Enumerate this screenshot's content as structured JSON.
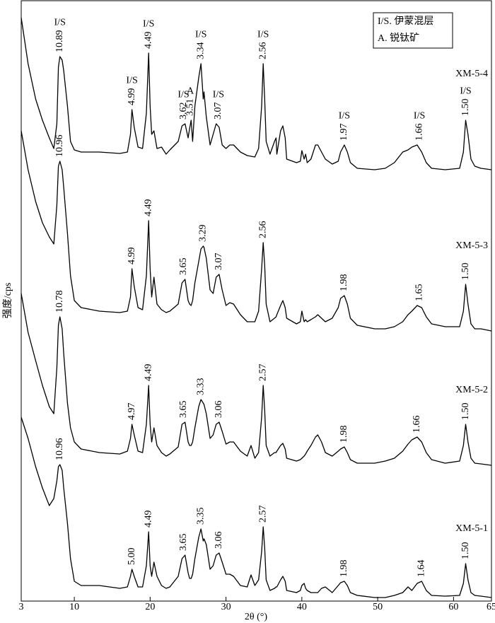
{
  "chart_data": {
    "type": "line",
    "xlabel": "2θ (°)",
    "ylabel": "强度/cps",
    "xlim": [
      3,
      65
    ],
    "xticks": [
      3,
      10,
      20,
      30,
      40,
      50,
      60,
      65
    ],
    "ylim": [
      0,
      150
    ],
    "grid": false,
    "color": "#000000",
    "legend": [
      "I/S. 伊蒙混层",
      "A. 锐钛矿"
    ],
    "x": [
      3.0,
      3.9,
      4.9,
      5.8,
      6.7,
      7.3,
      7.7,
      7.9,
      8.1,
      8.4,
      8.6,
      9.1,
      9.5,
      10.0,
      10.9,
      13.3,
      16.0,
      17.0,
      17.4,
      17.6,
      17.9,
      18.4,
      19.0,
      19.5,
      19.8,
      20.0,
      20.2,
      20.5,
      20.9,
      21.5,
      22.1,
      22.6,
      23.7,
      24.2,
      24.6,
      25.0,
      25.2,
      25.4,
      25.6,
      25.9,
      26.4,
      26.7,
      27.0,
      27.1,
      27.4,
      27.9,
      28.3,
      28.7,
      29.1,
      29.5,
      30.0,
      30.5,
      31.0,
      31.9,
      32.8,
      33.3,
      33.8,
      34.3,
      34.7,
      34.9,
      35.1,
      35.3,
      35.8,
      36.4,
      36.6,
      36.7,
      37.2,
      37.5,
      37.8,
      38.0,
      39.3,
      39.8,
      40.0,
      40.3,
      40.5,
      40.7,
      41.2,
      41.8,
      42.1,
      42.6,
      43.1,
      44.0,
      44.8,
      45.1,
      45.6,
      46.0,
      46.4,
      47.3,
      49.6,
      51.0,
      52.2,
      53.3,
      54.0,
      54.5,
      55.2,
      55.8,
      56.4,
      57.1,
      58.9,
      60.8,
      61.3,
      61.6,
      61.9,
      62.3,
      62.8,
      63.6,
      65.0
    ],
    "series": [
      {
        "name": "XM-5-4",
        "color": "#000000",
        "values": [
          107.5,
          75,
          50,
          35,
          22.5,
          15,
          32.5,
          72.5,
          80,
          77.5,
          70,
          45,
          20,
          14,
          12.5,
          12.5,
          11.5,
          12.5,
          25,
          42.5,
          30,
          16,
          15,
          40,
          82.5,
          45,
          25,
          27.5,
          15,
          16,
          11,
          14,
          20,
          31,
          32.5,
          22.5,
          29,
          35,
          20,
          45,
          65,
          75,
          50,
          55,
          37.5,
          17.5,
          25,
          32.5,
          30,
          17.5,
          15,
          17.5,
          17.5,
          12.5,
          10,
          9.5,
          9,
          15,
          45,
          75,
          50,
          20,
          11,
          20,
          22.5,
          11,
          27.5,
          31,
          22.5,
          7.5,
          5,
          6,
          13.5,
          7.5,
          11,
          5,
          7.5,
          17.5,
          17.5,
          12.5,
          7.5,
          4,
          6,
          12.5,
          17.5,
          12.5,
          5,
          1,
          0,
          1,
          5,
          12.5,
          14,
          16,
          17.5,
          12.5,
          5,
          1,
          0,
          1,
          12.5,
          35,
          25,
          7.5,
          2.5,
          1,
          0
        ],
        "peaks": [
          {
            "x": 8.1,
            "label": "10.89",
            "phase": "I/S"
          },
          {
            "x": 17.6,
            "label": "4.99",
            "phase": "I/S"
          },
          {
            "x": 19.8,
            "label": "4.49",
            "phase": "I/S"
          },
          {
            "x": 24.4,
            "label": "3.62",
            "phase": "I/S"
          },
          {
            "x": 25.3,
            "label": "3.51",
            "phase": "A"
          },
          {
            "x": 26.7,
            "label": "3.34",
            "phase": "I/S"
          },
          {
            "x": 29.0,
            "label": "3.07",
            "phase": "I/S"
          },
          {
            "x": 34.9,
            "label": "2.56",
            "phase": "I/S"
          },
          {
            "x": 45.6,
            "label": "1.97",
            "phase": "I/S"
          },
          {
            "x": 55.5,
            "label": "1.66",
            "phase": "I/S"
          },
          {
            "x": 61.6,
            "label": "1.50",
            "phase": "I/S"
          }
        ]
      },
      {
        "name": "XM-5-3",
        "color": "#000000",
        "values": [
          142.5,
          115,
          92.5,
          77.5,
          67.5,
          62.5,
          90,
          117.5,
          121,
          115,
          102.5,
          70,
          40,
          22.5,
          17.5,
          15,
          14,
          15,
          25,
          45,
          32.5,
          17.5,
          16,
          40,
          79,
          45,
          25,
          39,
          20,
          16,
          14,
          15,
          20,
          35,
          37.5,
          22.5,
          20,
          19,
          22.5,
          35,
          50,
          59,
          61,
          60,
          52.5,
          30,
          27.5,
          39,
          41,
          30,
          19,
          21,
          20,
          12.5,
          7.5,
          7.5,
          7.5,
          15,
          45,
          63.5,
          47.5,
          20,
          7.5,
          10,
          11,
          12.5,
          19,
          22.5,
          17.5,
          10,
          6,
          7.5,
          15,
          7.5,
          9,
          7.5,
          9,
          11,
          12.5,
          10,
          7.5,
          10,
          17.5,
          24,
          26,
          20,
          10,
          5,
          2.5,
          2.5,
          4,
          7.5,
          12.5,
          15,
          19,
          17.5,
          11,
          6,
          4,
          4,
          15,
          34,
          20,
          6,
          2.5,
          2.5,
          1
        ],
        "peaks": [
          {
            "x": 8.1,
            "label": "10.96"
          },
          {
            "x": 17.6,
            "label": "4.99"
          },
          {
            "x": 19.8,
            "label": "4.49"
          },
          {
            "x": 24.4,
            "label": "3.65"
          },
          {
            "x": 27.0,
            "label": "3.29"
          },
          {
            "x": 29.1,
            "label": "3.07"
          },
          {
            "x": 34.9,
            "label": "2.56"
          },
          {
            "x": 45.6,
            "label": "1.98"
          },
          {
            "x": 55.5,
            "label": "1.65"
          },
          {
            "x": 61.6,
            "label": "1.50"
          }
        ]
      },
      {
        "name": "XM-5-2",
        "color": "#000000",
        "values": [
          122.5,
          95,
          75,
          57.5,
          42.5,
          37.5,
          70,
          100,
          106,
          97.5,
          80,
          45,
          27.5,
          17.5,
          12.5,
          10,
          9,
          11,
          20,
          30,
          22.5,
          11,
          10,
          30,
          57.5,
          30,
          17.5,
          27.5,
          15,
          10,
          7.5,
          9,
          14,
          30,
          31.5,
          17.5,
          15,
          15,
          17.5,
          27.5,
          42.5,
          47.5,
          45,
          44,
          37.5,
          20,
          22.5,
          30,
          31.5,
          25,
          16,
          17.5,
          17.5,
          11,
          7.5,
          15,
          6,
          10,
          35,
          57.5,
          40,
          15,
          7.5,
          10,
          10,
          11,
          15,
          16.5,
          12.5,
          6,
          4,
          5,
          6,
          7.5,
          9,
          11,
          15,
          21,
          22.5,
          17.5,
          10,
          7.5,
          11,
          12.5,
          14,
          10,
          5,
          2.5,
          2.5,
          4,
          6,
          11,
          16,
          19,
          21,
          17.5,
          10,
          5,
          2.5,
          4,
          15,
          30,
          17.5,
          6,
          2.5,
          2,
          1
        ],
        "peaks": [
          {
            "x": 8.1,
            "label": "10.78"
          },
          {
            "x": 17.6,
            "label": "4.97"
          },
          {
            "x": 19.8,
            "label": "4.49"
          },
          {
            "x": 24.4,
            "label": "3.65"
          },
          {
            "x": 26.7,
            "label": "3.33"
          },
          {
            "x": 29.1,
            "label": "3.06"
          },
          {
            "x": 34.9,
            "label": "2.57"
          },
          {
            "x": 45.6,
            "label": "1.98"
          },
          {
            "x": 55.2,
            "label": "1.66"
          },
          {
            "x": 61.6,
            "label": "1.50"
          }
        ]
      },
      {
        "name": "XM-5-1",
        "color": "#000000",
        "values": [
          127.5,
          112.5,
          92.5,
          77.5,
          65,
          70,
          82.5,
          92.5,
          94,
          90,
          77.5,
          52.5,
          27.5,
          11.5,
          8.5,
          8.5,
          6.5,
          7.5,
          15,
          20,
          15,
          7.5,
          7.5,
          22.5,
          46.5,
          22.5,
          15,
          25,
          15,
          8.5,
          6.5,
          7.5,
          15,
          27.5,
          30,
          17.5,
          13.5,
          13.5,
          16.5,
          27.5,
          42.5,
          48.5,
          40,
          41.5,
          37.5,
          20,
          22.5,
          30,
          31.5,
          25,
          16.5,
          16.5,
          15,
          8.5,
          7.5,
          16,
          8.5,
          12.5,
          32.5,
          50,
          35,
          12.5,
          5,
          6.5,
          7.5,
          7.5,
          12.5,
          15,
          11.5,
          5,
          3.5,
          5,
          8.5,
          10,
          6.5,
          5,
          3.5,
          3.5,
          3.5,
          6.5,
          7.5,
          3.5,
          8.5,
          10.5,
          11.5,
          8.5,
          3.5,
          1.5,
          0,
          0,
          1.5,
          3.5,
          7.5,
          5,
          10,
          11.5,
          5,
          1.5,
          1,
          1.5,
          10,
          24,
          12.5,
          3.5,
          1.5,
          1,
          0
        ],
        "peaks": [
          {
            "x": 8.1,
            "label": "10.96"
          },
          {
            "x": 17.6,
            "label": "5.00"
          },
          {
            "x": 19.8,
            "label": "4.49"
          },
          {
            "x": 24.4,
            "label": "3.65"
          },
          {
            "x": 26.7,
            "label": "3.35"
          },
          {
            "x": 29.1,
            "label": "3.06"
          },
          {
            "x": 34.9,
            "label": "2.57"
          },
          {
            "x": 45.6,
            "label": "1.98"
          },
          {
            "x": 55.8,
            "label": "1.64"
          },
          {
            "x": 61.6,
            "label": "1.50"
          }
        ]
      }
    ]
  }
}
